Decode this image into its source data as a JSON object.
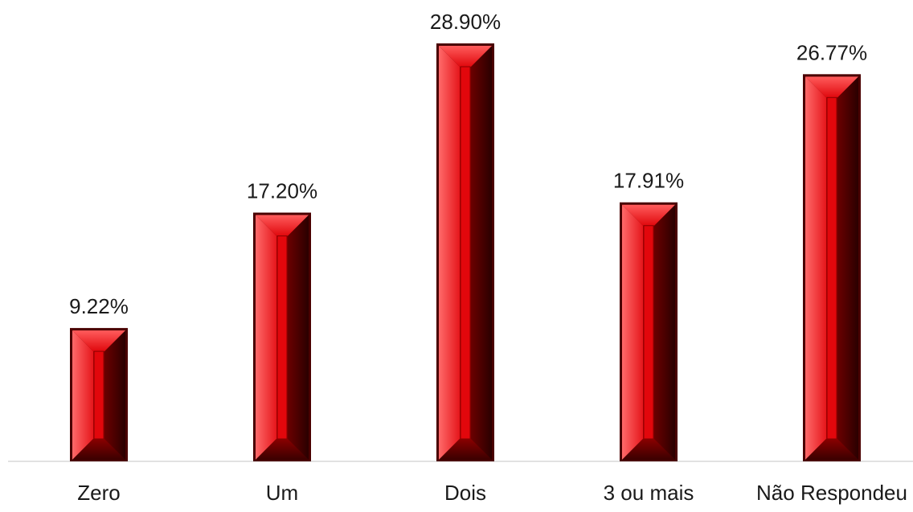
{
  "chart_data": {
    "type": "bar",
    "title": "",
    "xlabel": "",
    "ylabel": "",
    "categories": [
      "Zero",
      "Um",
      "Dois",
      "3 ou mais",
      "Não Respondeu"
    ],
    "values": [
      9.22,
      17.2,
      28.9,
      17.91,
      26.77
    ],
    "data_labels": [
      "9.22%",
      "17.20%",
      "28.90%",
      "17.91%",
      "26.77%"
    ],
    "ylim": [
      0,
      30
    ],
    "unit": "%",
    "grid": false,
    "legend": "none",
    "colors": {
      "bar_face": "#e0060b",
      "bar_light": "#ff4b4b",
      "bar_dark": "#5a0000",
      "axis_line": "#d9d9d9",
      "text": "#1a1a1a"
    }
  }
}
